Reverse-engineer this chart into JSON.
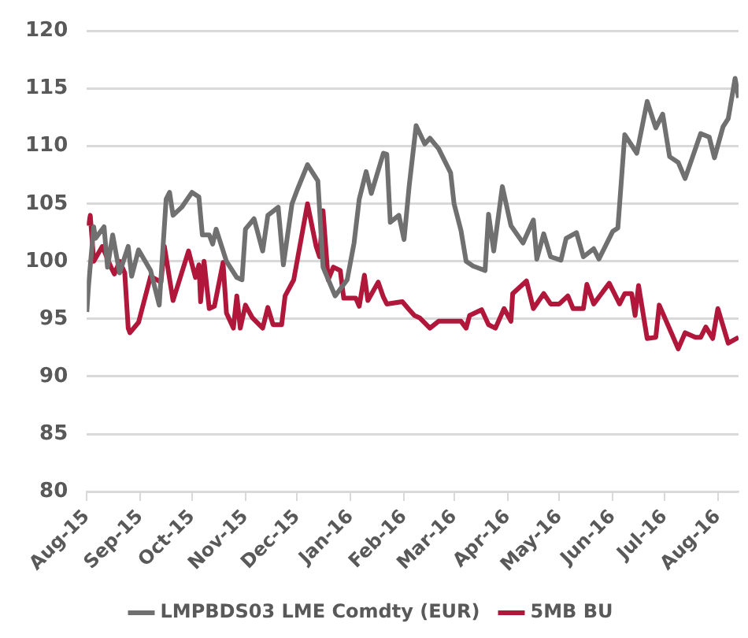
{
  "chart_data": {
    "type": "line",
    "xlim": [
      "2015-08-01",
      "2016-08-13"
    ],
    "xticks": [
      {
        "value": "2015-08-01",
        "label": "Aug-15"
      },
      {
        "value": "2015-09-01",
        "label": "Sep-15"
      },
      {
        "value": "2015-10-01",
        "label": "Oct-15"
      },
      {
        "value": "2015-11-01",
        "label": "Nov-15"
      },
      {
        "value": "2015-12-01",
        "label": "Dec-15"
      },
      {
        "value": "2016-01-01",
        "label": "Jan-16"
      },
      {
        "value": "2016-02-01",
        "label": "Feb-16"
      },
      {
        "value": "2016-03-01",
        "label": "Mar-16"
      },
      {
        "value": "2016-04-01",
        "label": "Apr-16"
      },
      {
        "value": "2016-05-01",
        "label": "May-16"
      },
      {
        "value": "2016-06-01",
        "label": "Jun-16"
      },
      {
        "value": "2016-07-01",
        "label": "Jul-16"
      },
      {
        "value": "2016-08-01",
        "label": "Aug-16"
      }
    ],
    "ylim": [
      80,
      120
    ],
    "yticks": [
      80,
      85,
      90,
      95,
      100,
      105,
      110,
      115,
      120
    ],
    "grid": "y",
    "legend": "bottom",
    "marker": "none",
    "line_style": "solid",
    "series": [
      {
        "name": "LMPBDS03 LME Comdty (EUR)",
        "color": "#707070",
        "x": [
          "2015-08-01",
          "2015-08-02",
          "2015-08-05",
          "2015-08-06",
          "2015-08-11",
          "2015-08-13",
          "2015-08-16",
          "2015-08-20",
          "2015-08-25",
          "2015-08-27",
          "2015-08-31",
          "2015-09-07",
          "2015-09-12",
          "2015-09-16",
          "2015-09-18",
          "2015-09-20",
          "2015-09-25",
          "2015-10-01",
          "2015-10-05",
          "2015-10-07",
          "2015-10-11",
          "2015-10-13",
          "2015-10-15",
          "2015-10-21",
          "2015-10-27",
          "2015-10-30",
          "2015-11-01",
          "2015-11-06",
          "2015-11-11",
          "2015-11-14",
          "2015-11-20",
          "2015-11-23",
          "2015-11-28",
          "2015-12-01",
          "2015-12-07",
          "2015-12-13",
          "2015-12-16",
          "2015-12-23",
          "2015-12-30",
          "2016-01-03",
          "2016-01-06",
          "2016-01-10",
          "2016-01-13",
          "2016-01-20",
          "2016-01-22",
          "2016-01-24",
          "2016-01-29",
          "2016-02-01",
          "2016-02-04",
          "2016-02-08",
          "2016-02-13",
          "2016-02-16",
          "2016-02-21",
          "2016-02-28",
          "2016-03-01",
          "2016-03-05",
          "2016-03-08",
          "2016-03-12",
          "2016-03-19",
          "2016-03-21",
          "2016-03-24",
          "2016-03-29",
          "2016-04-03",
          "2016-04-10",
          "2016-04-16",
          "2016-04-18",
          "2016-04-22",
          "2016-04-26",
          "2016-05-02",
          "2016-05-05",
          "2016-05-11",
          "2016-05-15",
          "2016-05-21",
          "2016-05-24",
          "2016-06-01",
          "2016-06-04",
          "2016-06-08",
          "2016-06-15",
          "2016-06-21",
          "2016-06-26",
          "2016-06-30",
          "2016-07-04",
          "2016-07-09",
          "2016-07-13",
          "2016-07-22",
          "2016-07-27",
          "2016-07-30",
          "2016-08-04",
          "2016-08-07",
          "2016-08-11",
          "2016-08-13"
        ],
        "values": [
          95.6,
          97.9,
          103,
          102,
          103,
          99.5,
          102.3,
          99,
          101.3,
          98.7,
          101,
          99.2,
          96.2,
          105.4,
          106,
          104,
          104.7,
          106,
          105.6,
          102.3,
          102.3,
          101.5,
          102.8,
          100,
          98.6,
          98.4,
          102.8,
          103.7,
          100.9,
          104,
          104.7,
          99.7,
          105,
          106.2,
          108.4,
          107,
          99.5,
          97,
          98.4,
          101.6,
          105.4,
          107.8,
          105.9,
          109.4,
          109.3,
          103.4,
          104,
          101.9,
          106.6,
          111.8,
          110.2,
          110.7,
          109.8,
          107.7,
          105,
          102.7,
          100,
          99.6,
          99.2,
          104.1,
          100.9,
          106.5,
          103.1,
          101.6,
          103.6,
          100.2,
          102.4,
          100.4,
          100.1,
          102,
          102.5,
          100.4,
          101.1,
          100.2,
          102.6,
          102.9,
          111,
          109.4,
          113.9,
          111.6,
          112.8,
          109.1,
          108.6,
          107.2,
          111.1,
          110.8,
          109,
          111.7,
          112.4,
          115.9,
          114.2
        ]
      },
      {
        "name": "5MB BU",
        "color": "#b0173a",
        "x": [
          "2015-08-02",
          "2015-08-03",
          "2015-08-05",
          "2015-08-10",
          "2015-08-15",
          "2015-08-17",
          "2015-08-20",
          "2015-08-23",
          "2015-08-25",
          "2015-08-26",
          "2015-08-31",
          "2015-09-07",
          "2015-09-13",
          "2015-09-15",
          "2015-09-20",
          "2015-09-29",
          "2015-10-03",
          "2015-10-05",
          "2015-10-06",
          "2015-10-08",
          "2015-10-11",
          "2015-10-14",
          "2015-10-19",
          "2015-10-21",
          "2015-10-25",
          "2015-10-27",
          "2015-10-29",
          "2015-11-01",
          "2015-11-05",
          "2015-11-11",
          "2015-11-14",
          "2015-11-17",
          "2015-11-22",
          "2015-11-24",
          "2015-11-29",
          "2015-12-07",
          "2015-12-12",
          "2015-12-14",
          "2015-12-16",
          "2015-12-19",
          "2015-12-22",
          "2015-12-26",
          "2015-12-28",
          "2016-01-04",
          "2016-01-06",
          "2016-01-09",
          "2016-01-11",
          "2016-01-17",
          "2016-01-20",
          "2016-01-22",
          "2016-01-31",
          "2016-02-04",
          "2016-02-07",
          "2016-02-10",
          "2016-02-16",
          "2016-02-21",
          "2016-03-05",
          "2016-03-08",
          "2016-03-10",
          "2016-03-17",
          "2016-03-21",
          "2016-03-25",
          "2016-03-30",
          "2016-04-03",
          "2016-04-04",
          "2016-04-12",
          "2016-04-16",
          "2016-04-22",
          "2016-04-26",
          "2016-05-01",
          "2016-05-06",
          "2016-05-09",
          "2016-05-15",
          "2016-05-17",
          "2016-05-21",
          "2016-05-30",
          "2016-06-05",
          "2016-06-08",
          "2016-06-12",
          "2016-06-14",
          "2016-06-16",
          "2016-06-21",
          "2016-06-26",
          "2016-06-28",
          "2016-07-05",
          "2016-07-09",
          "2016-07-13",
          "2016-07-19",
          "2016-07-22",
          "2016-07-25",
          "2016-07-29",
          "2016-08-01",
          "2016-08-07",
          "2016-08-13"
        ],
        "values": [
          103.1,
          104,
          100,
          101.3,
          99.5,
          98.9,
          100,
          99,
          94.2,
          93.8,
          94.7,
          98.7,
          98.2,
          101.3,
          96.6,
          100.9,
          98.6,
          99.7,
          96.5,
          100,
          95.9,
          96.1,
          99.9,
          95.5,
          94.2,
          97,
          94.2,
          96.2,
          95.1,
          94.2,
          96,
          94.5,
          94.5,
          97,
          98.4,
          105,
          101.3,
          100.4,
          104.4,
          98.4,
          99.5,
          99.2,
          96.8,
          96.8,
          96.1,
          98.8,
          96.6,
          98.2,
          96.9,
          96.3,
          96.5,
          95.8,
          95.3,
          95.1,
          94.2,
          94.8,
          94.8,
          94.2,
          95.3,
          95.8,
          94.5,
          94.2,
          95.9,
          94.8,
          97.2,
          98.3,
          95.9,
          97.2,
          96.3,
          96.3,
          97,
          95.9,
          95.9,
          98,
          96.3,
          98.1,
          96.3,
          97.2,
          97.2,
          95.3,
          97.9,
          93.3,
          93.4,
          96.2,
          93.8,
          92.4,
          93.8,
          93.4,
          93.4,
          94.3,
          93.3,
          95.9,
          92.9,
          93.4
        ]
      }
    ]
  }
}
